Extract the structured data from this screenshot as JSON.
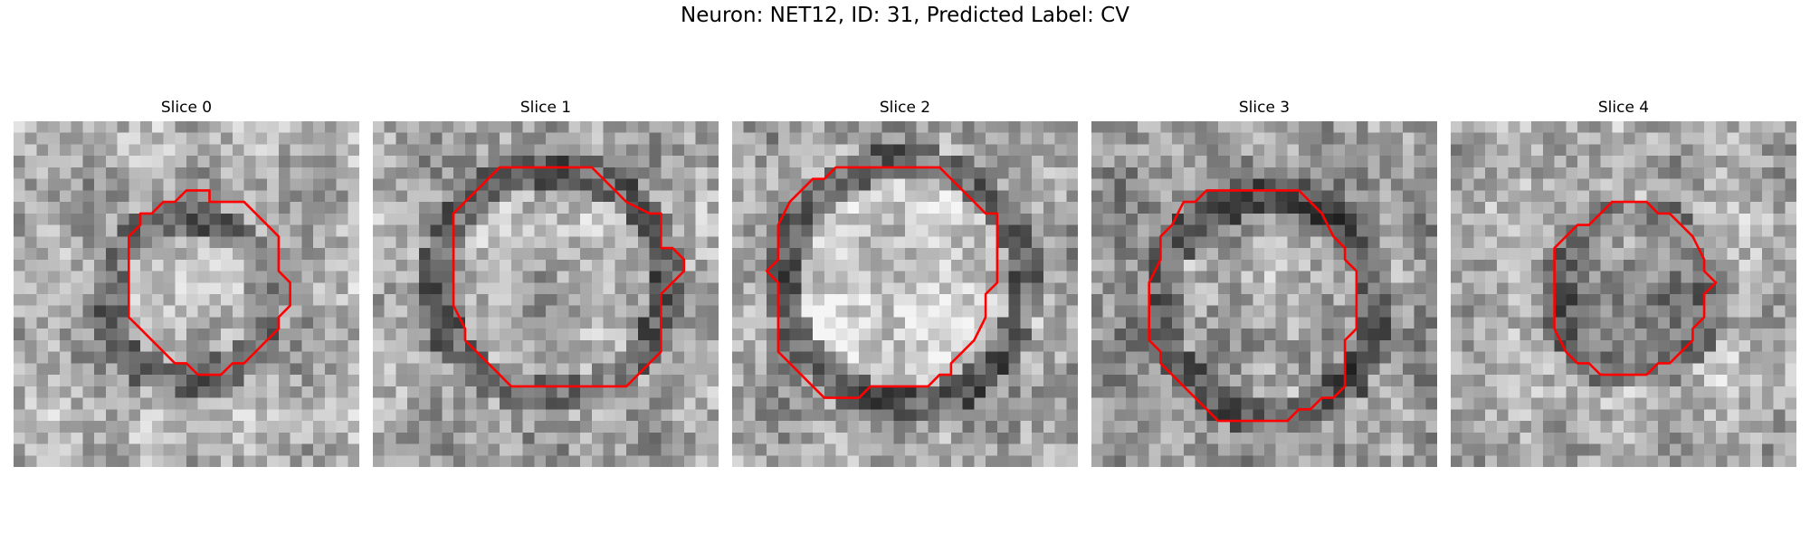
{
  "figure": {
    "title": "Neuron: NET12, ID: 31, Predicted Label: CV"
  },
  "slices": [
    {
      "title": "Slice 0"
    },
    {
      "title": "Slice 1"
    },
    {
      "title": "Slice 2"
    },
    {
      "title": "Slice 3"
    },
    {
      "title": "Slice 4"
    }
  ],
  "style": {
    "contour_color": "#ff0000"
  }
}
